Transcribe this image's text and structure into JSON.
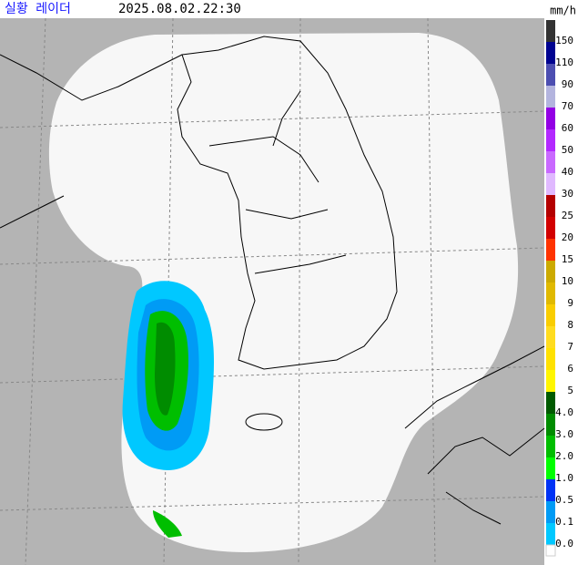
{
  "header": {
    "title": "실황 레이더",
    "timestamp": "2025.08.02.22:30"
  },
  "legend": {
    "unit": "mm/h",
    "items": [
      {
        "label": "150",
        "color": "#333333"
      },
      {
        "label": "110",
        "color": "#000390"
      },
      {
        "label": "90",
        "color": "#4c4eb1"
      },
      {
        "label": "70",
        "color": "#b3b4de"
      },
      {
        "label": "60",
        "color": "#9300e4"
      },
      {
        "label": "50",
        "color": "#b329ff"
      },
      {
        "label": "40",
        "color": "#c969ff"
      },
      {
        "label": "30",
        "color": "#e0b9ff"
      },
      {
        "label": "25",
        "color": "#b40000"
      },
      {
        "label": "20",
        "color": "#d20000"
      },
      {
        "label": "15",
        "color": "#ff3300"
      },
      {
        "label": "10",
        "color": "#ccaa00"
      },
      {
        "label": "9",
        "color": "#e0b900"
      },
      {
        "label": "8",
        "color": "#f9cd00"
      },
      {
        "label": "7",
        "color": "#ffdc1f"
      },
      {
        "label": "6",
        "color": "#ffe100"
      },
      {
        "label": "5",
        "color": "#fff600"
      },
      {
        "label": "4.0",
        "color": "#005a00"
      },
      {
        "label": "3.0",
        "color": "#008c00"
      },
      {
        "label": "2.0",
        "color": "#00be00"
      },
      {
        "label": "1.0",
        "color": "#00ff00"
      },
      {
        "label": "0.5",
        "color": "#0033f5"
      },
      {
        "label": "0.1",
        "color": "#009bf5"
      },
      {
        "label": "0.0",
        "color": "#00c8ff"
      }
    ]
  }
}
